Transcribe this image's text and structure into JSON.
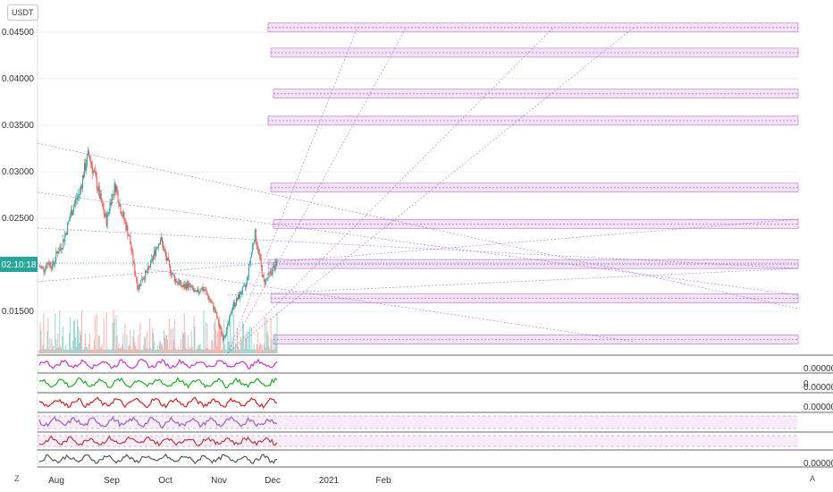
{
  "header": {
    "currency": "USDT"
  },
  "bottom": {
    "left_button": "Z",
    "right_button": "A"
  },
  "chart_data": [
    {
      "type": "candlestick",
      "title": "",
      "price_axis": {
        "ticks": [
          "0.04500",
          "0.04000",
          "0.03500",
          "0.03000",
          "0.02500",
          "0.02000",
          "0.01500"
        ],
        "ylim": [
          0.0105,
          0.0475
        ]
      },
      "time_axis": {
        "ticks": [
          "Aug",
          "Sep",
          "Oct",
          "Nov",
          "Dec",
          "2021",
          "Feb"
        ]
      },
      "current_price_label": "02:10:18",
      "price_path": [
        0.0198,
        0.0196,
        0.0203,
        0.0199,
        0.0214,
        0.0221,
        0.0236,
        0.0255,
        0.0268,
        0.0278,
        0.0302,
        0.0319,
        0.0301,
        0.0283,
        0.0262,
        0.0247,
        0.0272,
        0.0286,
        0.0263,
        0.0247,
        0.0231,
        0.0201,
        0.0175,
        0.0187,
        0.0191,
        0.0203,
        0.0218,
        0.0229,
        0.0211,
        0.0197,
        0.0186,
        0.0181,
        0.0176,
        0.0179,
        0.0174,
        0.0168,
        0.0176,
        0.0172,
        0.0162,
        0.0153,
        0.0136,
        0.0122,
        0.0133,
        0.0155,
        0.0162,
        0.0171,
        0.0176,
        0.0206,
        0.0234,
        0.0211,
        0.0181,
        0.0187,
        0.0195,
        0.0202
      ],
      "resistance_zones": [
        0.0455,
        0.0428,
        0.0384,
        0.0355,
        0.0283,
        0.0244,
        0.0201,
        0.0164,
        0.012
      ]
    },
    {
      "type": "oscillator",
      "name": "",
      "last_value_label": "0.00000",
      "color": "#cc33cc"
    },
    {
      "type": "oscillator",
      "name": "",
      "last_value_label": "0.00000",
      "right_label": "0",
      "color": "#22aa22"
    },
    {
      "type": "oscillator",
      "name": "",
      "last_value_label": "0.00000",
      "color": "#cc2222"
    },
    {
      "type": "oscillator",
      "name": "",
      "color": "#9b5fc0"
    },
    {
      "type": "oscillator",
      "name": "",
      "color": "#b23b3b"
    },
    {
      "type": "oscillator",
      "name": "",
      "last_value_label": "0.00000",
      "color": "#555555"
    }
  ]
}
